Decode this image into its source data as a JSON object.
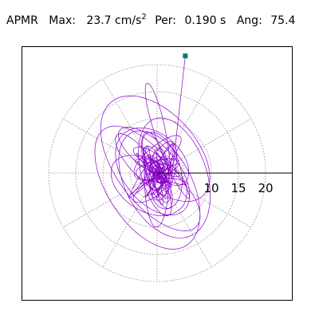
{
  "header": {
    "code": "APMR",
    "max_label": "Max:",
    "max_value": "23.7 cm/s",
    "max_exp": "2",
    "per_label": "Per:",
    "per_value": "0.190 s",
    "ang_label": "Ang:",
    "ang_value": "75.4"
  },
  "colors": {
    "trace": "#8b00cc",
    "marker": "#007f66",
    "grid": "#888888",
    "axis": "#000000"
  },
  "chart_data": {
    "type": "scatter",
    "subtype": "polar-orbit",
    "title": "",
    "max_magnitude": 23.7,
    "angle_deg": 75.4,
    "period_s": 0.19,
    "radial_ticks": [
      5,
      10,
      15,
      20
    ],
    "tick_labels": [
      "10",
      "15",
      "20"
    ],
    "radial_max": 25,
    "angular_spokes_deg": [
      0,
      30,
      60,
      90,
      120,
      150,
      180,
      210,
      240,
      270,
      300,
      330
    ],
    "grid": true,
    "start_point": [
      5.2,
      21.6
    ]
  }
}
